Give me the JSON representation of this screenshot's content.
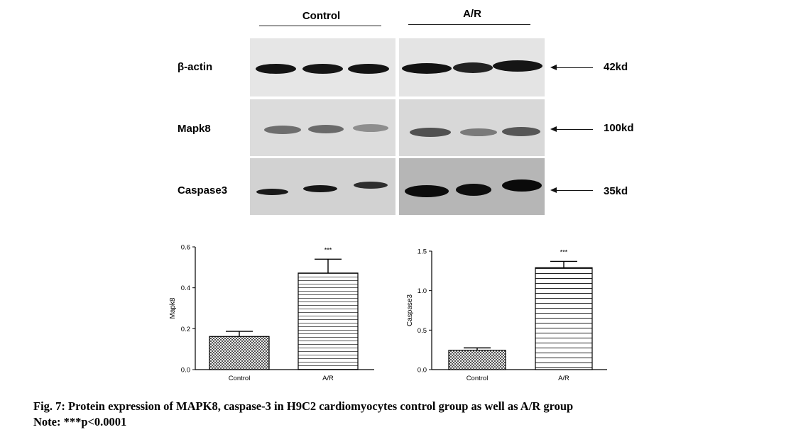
{
  "western_blot": {
    "groups": [
      "Control",
      "A/R"
    ],
    "rows": [
      {
        "label": "β-actin",
        "kd": "42kd"
      },
      {
        "label": "Mapk8",
        "kd": "100kd"
      },
      {
        "label": "Caspase3",
        "kd": "35kd"
      }
    ]
  },
  "chart_data": [
    {
      "type": "bar",
      "categories": [
        "Control",
        "A/R"
      ],
      "values": [
        0.162,
        0.472
      ],
      "errors": [
        0.025,
        0.068
      ],
      "significance": [
        "",
        "***"
      ],
      "ylabel": "Mapk8",
      "ylim": [
        0,
        0.6
      ],
      "yticks": [
        "0.0",
        "0.2",
        "0.4",
        "0.6"
      ],
      "grid": false
    },
    {
      "type": "bar",
      "categories": [
        "Control",
        "A/R"
      ],
      "values": [
        0.245,
        1.29
      ],
      "errors": [
        0.03,
        0.08
      ],
      "significance": [
        "",
        "***"
      ],
      "ylabel": "Caspase3",
      "ylim": [
        0,
        1.5
      ],
      "yticks": [
        "0.0",
        "0.5",
        "1.0",
        "1.5"
      ],
      "grid": false
    }
  ],
  "caption": {
    "line1": "Fig. 7: Protein expression of MAPK8, caspase-3 in H9C2 cardiomyocytes control group as well as A/R group",
    "line2": "Note: ***p<0.0001"
  }
}
